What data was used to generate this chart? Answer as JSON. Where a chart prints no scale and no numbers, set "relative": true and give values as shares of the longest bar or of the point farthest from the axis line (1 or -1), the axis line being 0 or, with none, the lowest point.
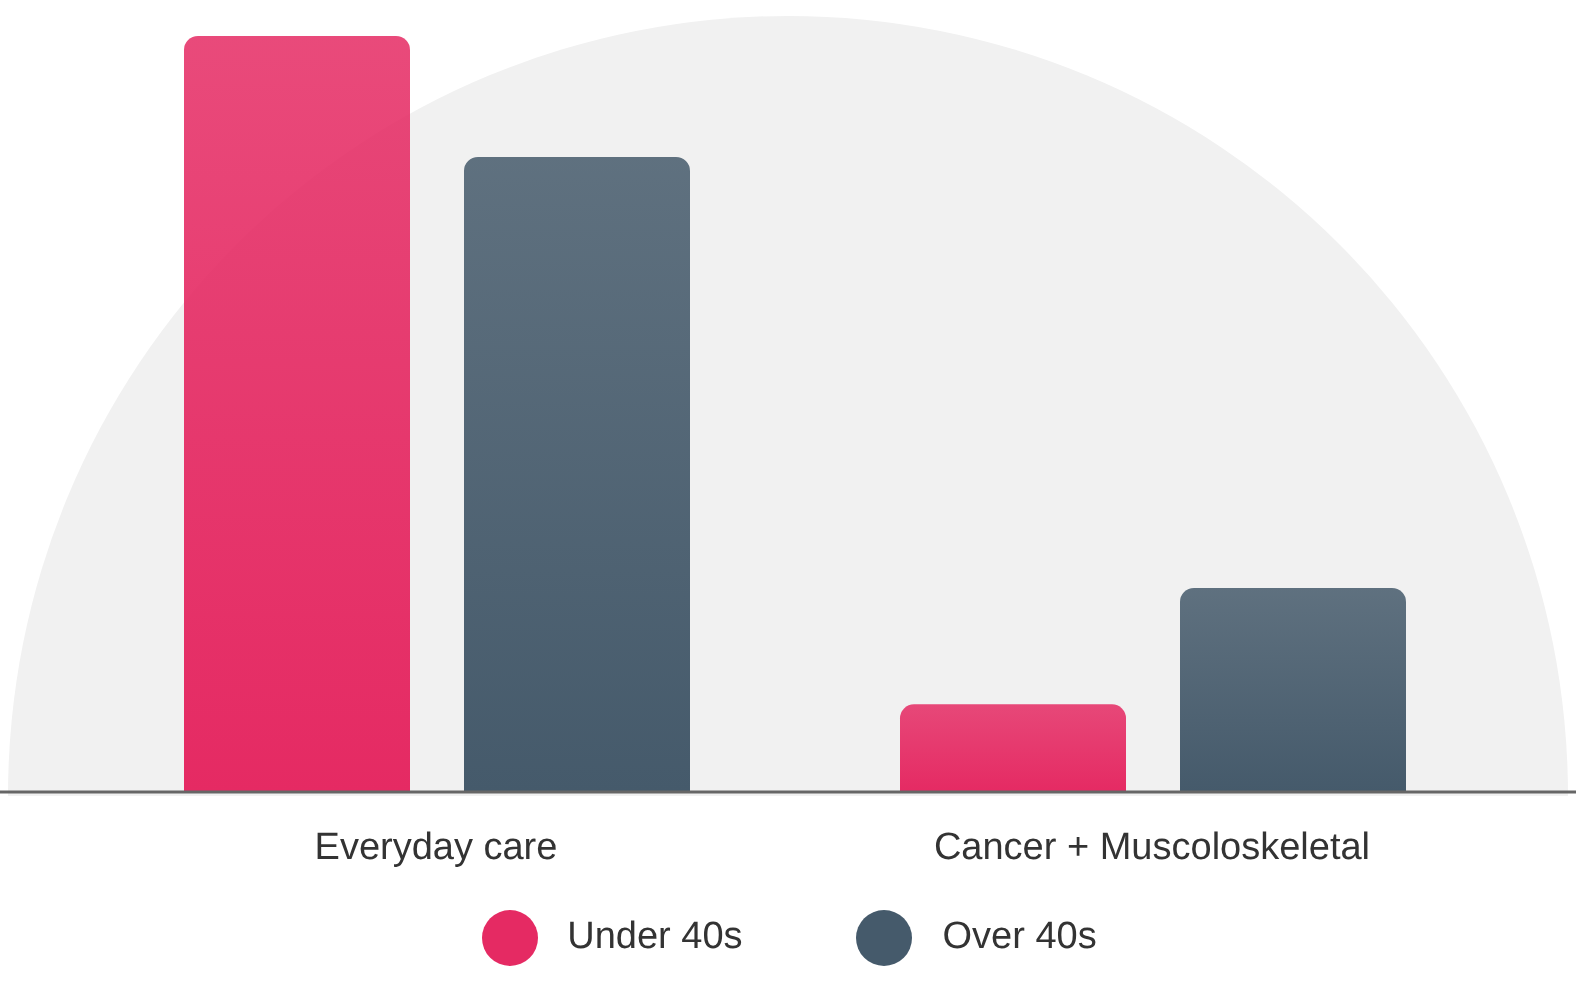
{
  "chart_data": {
    "type": "bar",
    "relative": true,
    "categories": [
      "Everyday care",
      "Cancer + Muscoloskeletal"
    ],
    "series": [
      {
        "name": "Under 40s",
        "color": "#e52a63",
        "values": [
          1,
          0.116
        ]
      },
      {
        "name": "Over 40s",
        "color": "#455a6b",
        "values": [
          0.84,
          0.27
        ]
      }
    ],
    "legend": "bottom",
    "grid": false
  }
}
